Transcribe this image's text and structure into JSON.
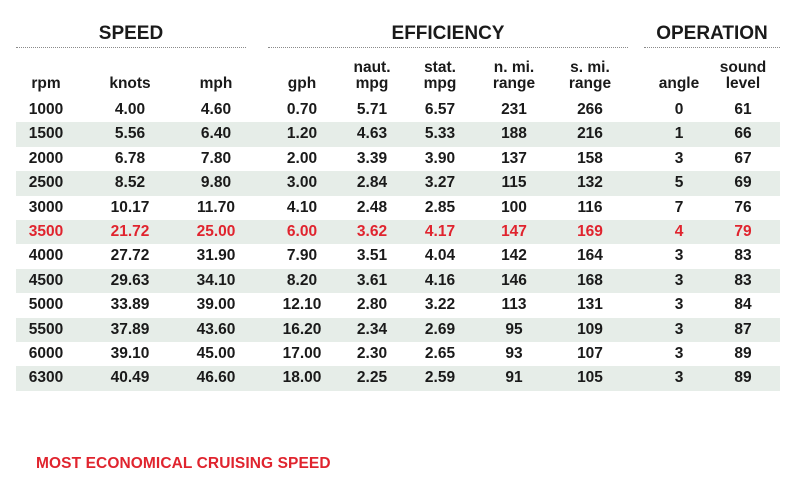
{
  "groups": {
    "speed": "SPEED",
    "efficiency": "EFFICIENCY",
    "operation": "OPERATION"
  },
  "columns": {
    "rpm": "rpm",
    "knots": "knots",
    "mph": "mph",
    "gph": "gph",
    "naut_mpg_1": "naut.",
    "naut_mpg_2": "mpg",
    "stat_mpg_1": "stat.",
    "stat_mpg_2": "mpg",
    "nmi_range_1": "n. mi.",
    "nmi_range_2": "range",
    "smi_range_1": "s. mi.",
    "smi_range_2": "range",
    "angle": "angle",
    "sound_1": "sound",
    "sound_2": "level"
  },
  "rows": [
    {
      "rpm": "1000",
      "knots": "4.00",
      "mph": "4.60",
      "gph": "0.70",
      "naut_mpg": "5.71",
      "stat_mpg": "6.57",
      "nmi_range": "231",
      "smi_range": "266",
      "angle": "0",
      "sound": "61"
    },
    {
      "rpm": "1500",
      "knots": "5.56",
      "mph": "6.40",
      "gph": "1.20",
      "naut_mpg": "4.63",
      "stat_mpg": "5.33",
      "nmi_range": "188",
      "smi_range": "216",
      "angle": "1",
      "sound": "66"
    },
    {
      "rpm": "2000",
      "knots": "6.78",
      "mph": "7.80",
      "gph": "2.00",
      "naut_mpg": "3.39",
      "stat_mpg": "3.90",
      "nmi_range": "137",
      "smi_range": "158",
      "angle": "3",
      "sound": "67"
    },
    {
      "rpm": "2500",
      "knots": "8.52",
      "mph": "9.80",
      "gph": "3.00",
      "naut_mpg": "2.84",
      "stat_mpg": "3.27",
      "nmi_range": "115",
      "smi_range": "132",
      "angle": "5",
      "sound": "69"
    },
    {
      "rpm": "3000",
      "knots": "10.17",
      "mph": "11.70",
      "gph": "4.10",
      "naut_mpg": "2.48",
      "stat_mpg": "2.85",
      "nmi_range": "100",
      "smi_range": "116",
      "angle": "7",
      "sound": "76"
    },
    {
      "rpm": "3500",
      "knots": "21.72",
      "mph": "25.00",
      "gph": "6.00",
      "naut_mpg": "3.62",
      "stat_mpg": "4.17",
      "nmi_range": "147",
      "smi_range": "169",
      "angle": "4",
      "sound": "79",
      "highlight": true
    },
    {
      "rpm": "4000",
      "knots": "27.72",
      "mph": "31.90",
      "gph": "7.90",
      "naut_mpg": "3.51",
      "stat_mpg": "4.04",
      "nmi_range": "142",
      "smi_range": "164",
      "angle": "3",
      "sound": "83"
    },
    {
      "rpm": "4500",
      "knots": "29.63",
      "mph": "34.10",
      "gph": "8.20",
      "naut_mpg": "3.61",
      "stat_mpg": "4.16",
      "nmi_range": "146",
      "smi_range": "168",
      "angle": "3",
      "sound": "83"
    },
    {
      "rpm": "5000",
      "knots": "33.89",
      "mph": "39.00",
      "gph": "12.10",
      "naut_mpg": "2.80",
      "stat_mpg": "3.22",
      "nmi_range": "113",
      "smi_range": "131",
      "angle": "3",
      "sound": "84"
    },
    {
      "rpm": "5500",
      "knots": "37.89",
      "mph": "43.60",
      "gph": "16.20",
      "naut_mpg": "2.34",
      "stat_mpg": "2.69",
      "nmi_range": "95",
      "smi_range": "109",
      "angle": "3",
      "sound": "87"
    },
    {
      "rpm": "6000",
      "knots": "39.10",
      "mph": "45.00",
      "gph": "17.00",
      "naut_mpg": "2.30",
      "stat_mpg": "2.65",
      "nmi_range": "93",
      "smi_range": "107",
      "angle": "3",
      "sound": "89"
    },
    {
      "rpm": "6300",
      "knots": "40.49",
      "mph": "46.60",
      "gph": "18.00",
      "naut_mpg": "2.25",
      "stat_mpg": "2.59",
      "nmi_range": "91",
      "smi_range": "105",
      "angle": "3",
      "sound": "89"
    }
  ],
  "footnote": "MOST ECONOMICAL CRUISING SPEED",
  "colors": {
    "highlight": "#e0242e",
    "row_shade": "#e6ede8",
    "text": "#1a1a1a"
  }
}
